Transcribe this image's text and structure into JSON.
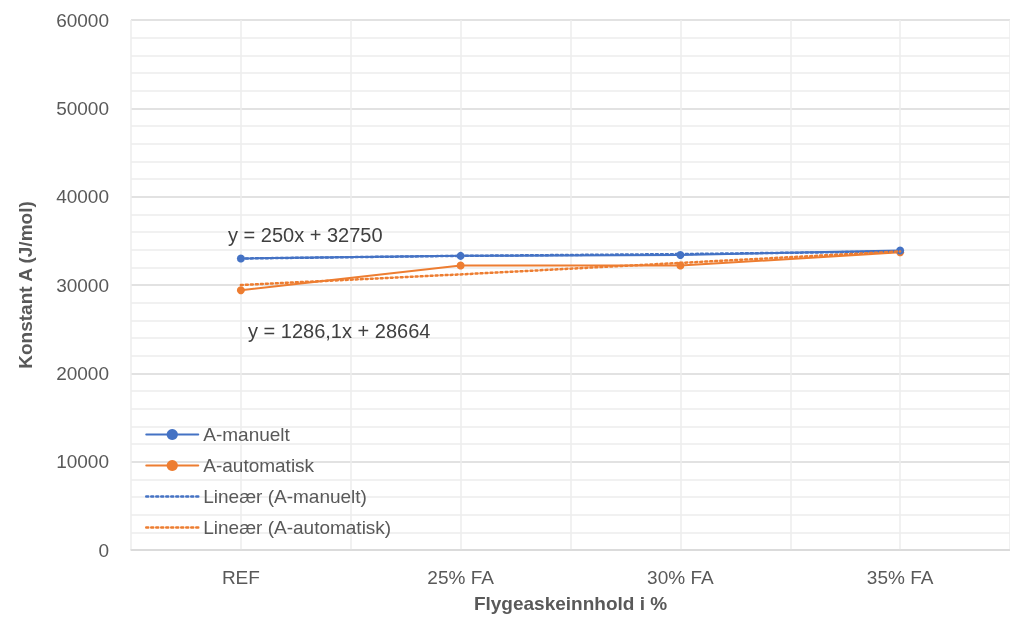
{
  "chart_data": {
    "type": "line",
    "xlabel": "Flygeaskeinnhold i %",
    "ylabel": "Konstant A (J/mol)",
    "categories": [
      "REF",
      "25% FA",
      "30% FA",
      "35% FA"
    ],
    "series": [
      {
        "name": "A-manuelt",
        "color": "#4472c4",
        "values": [
          33000,
          33300,
          33400,
          33900
        ],
        "marker": "circle",
        "line_style": "solid"
      },
      {
        "name": "A-automatisk",
        "color": "#ed7d31",
        "values": [
          29400,
          32200,
          32200,
          33700
        ],
        "marker": "circle",
        "line_style": "solid"
      },
      {
        "name": "Lineær (A-manuelt)",
        "color": "#4472c4",
        "values": [
          33000,
          33300,
          33500,
          33800
        ],
        "marker": "none",
        "line_style": "dotted"
      },
      {
        "name": "Lineær (A-automatisk)",
        "color": "#ed7d31",
        "values": [
          30000,
          31200,
          32500,
          33800
        ],
        "marker": "none",
        "line_style": "dotted"
      }
    ],
    "ylim": [
      0,
      60000
    ],
    "yticks": [
      0,
      10000,
      20000,
      30000,
      40000,
      50000,
      60000
    ],
    "grid": true,
    "legend": "bottom left",
    "annotations": [
      "y = 250x + 32750",
      "y = 1286,1x + 28664"
    ]
  }
}
